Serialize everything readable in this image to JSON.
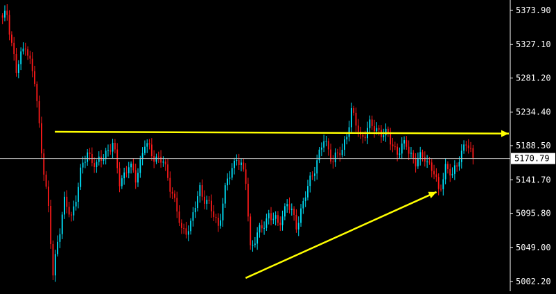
{
  "chart_data": {
    "type": "candlestick",
    "ylim": [
      5002.2,
      5373.9
    ],
    "y_ticks": [
      "5373.90",
      "5327.10",
      "5281.20",
      "5234.40",
      "5188.50",
      "5141.70",
      "5095.80",
      "5049.00",
      "5002.20"
    ],
    "current_price": "5170.79",
    "grid": false,
    "colors": {
      "background": "#000000",
      "up": "#00e5ff",
      "down": "#ff1a1a",
      "axis": "#ffffff",
      "axis_text": "#ffffff",
      "current_line": "#c0c0c0",
      "annotation": "#ffff00",
      "label_bg": "#ffffff",
      "label_text": "#000000"
    },
    "annotations": [
      {
        "type": "horizontal-arrow",
        "from": [
          0.105,
          5207.5
        ],
        "to": [
          1.0,
          5205.0
        ]
      },
      {
        "type": "trend-arrow",
        "from": [
          0.48,
          5007.0
        ],
        "to": [
          0.855,
          5125.0
        ]
      }
    ]
  }
}
